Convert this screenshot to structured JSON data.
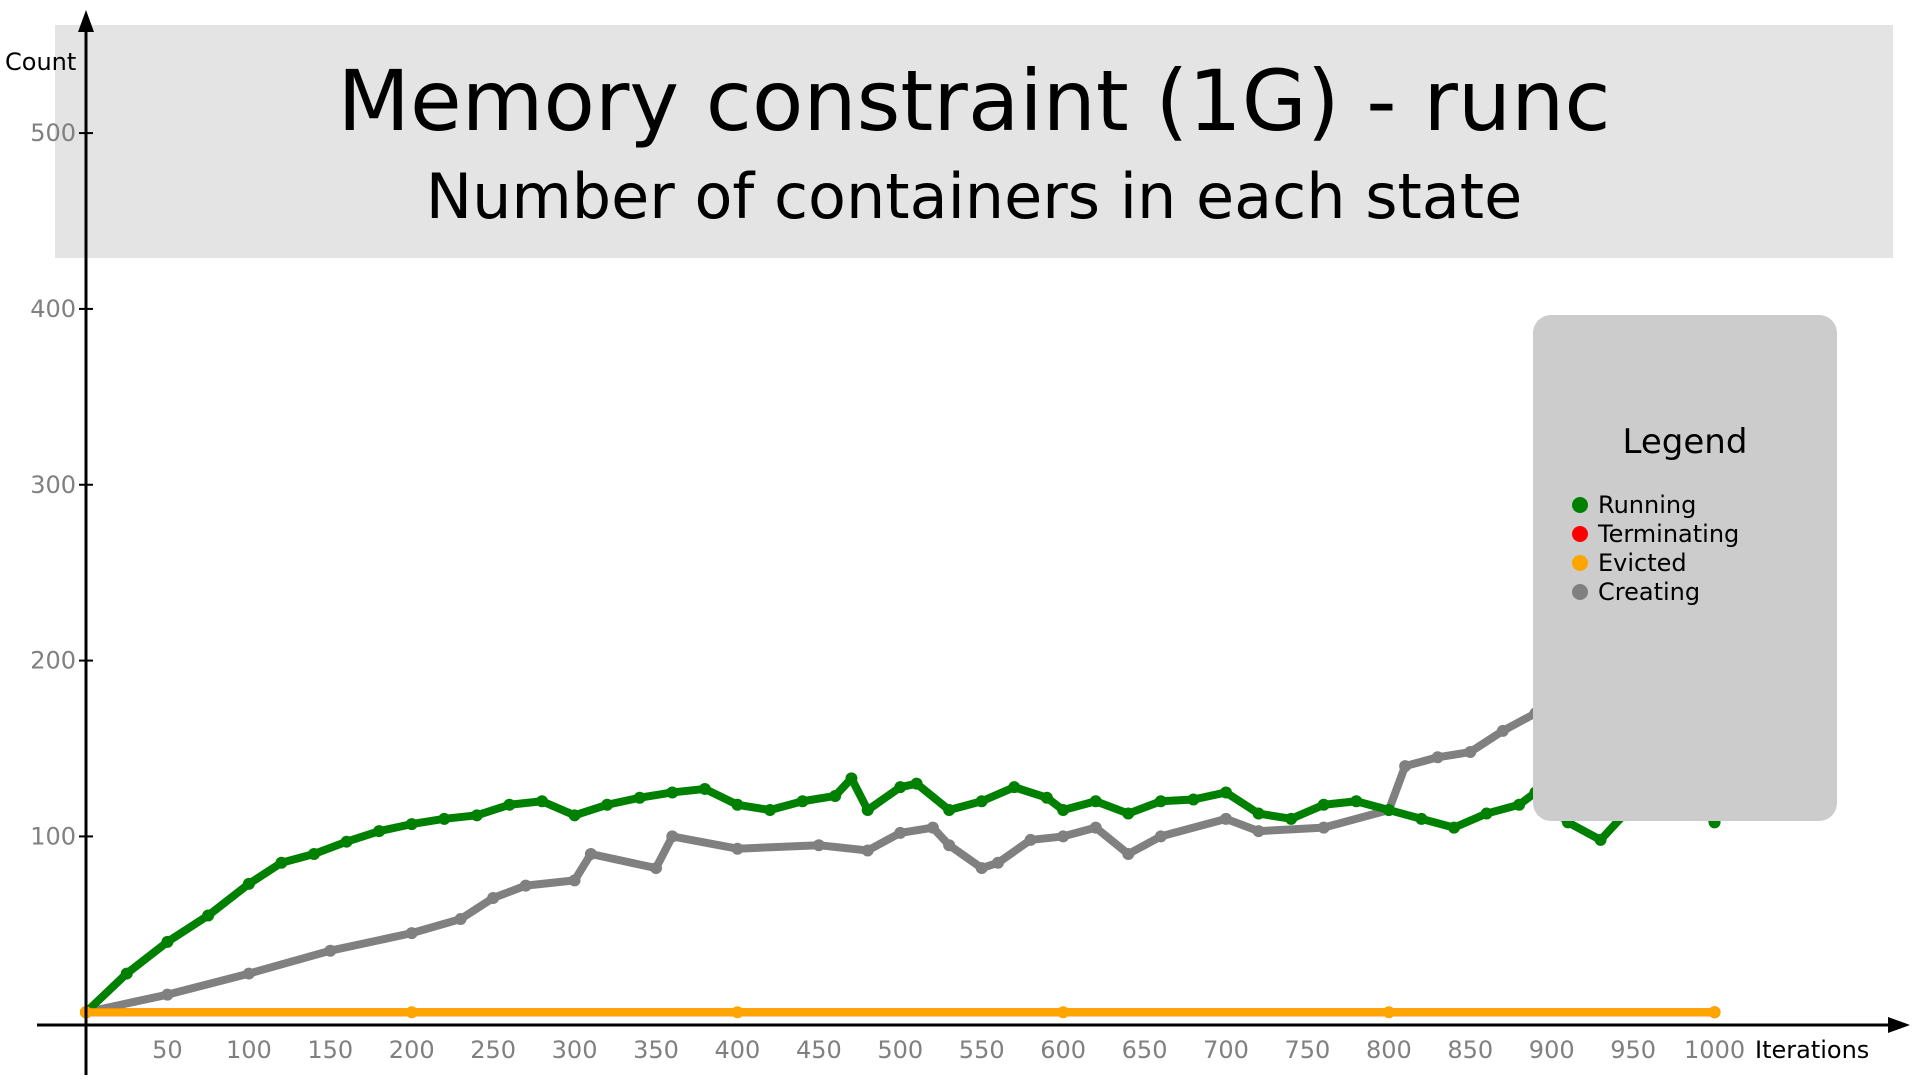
{
  "chart_data": {
    "type": "scatter",
    "title": "Memory constraint (1G) - runc",
    "subtitle": "Number of containers in each state",
    "xlabel": "Iterations",
    "ylabel": "Count",
    "xlim": [
      0,
      1120
    ],
    "ylim": [
      -30,
      570
    ],
    "x_ticks": [
      50,
      100,
      150,
      200,
      250,
      300,
      350,
      400,
      450,
      500,
      550,
      600,
      650,
      700,
      750,
      800,
      850,
      900,
      950,
      1000
    ],
    "y_ticks": [
      100,
      200,
      300,
      400,
      500
    ],
    "grid": false,
    "legend": {
      "title": "Legend",
      "placement": "top-right"
    },
    "series": [
      {
        "name": "Running",
        "color": "#008000",
        "points": [
          [
            0,
            0
          ],
          [
            25,
            22
          ],
          [
            50,
            40
          ],
          [
            75,
            55
          ],
          [
            100,
            73
          ],
          [
            120,
            85
          ],
          [
            140,
            90
          ],
          [
            160,
            97
          ],
          [
            180,
            103
          ],
          [
            200,
            107
          ],
          [
            220,
            110
          ],
          [
            240,
            112
          ],
          [
            260,
            118
          ],
          [
            280,
            120
          ],
          [
            300,
            112
          ],
          [
            320,
            118
          ],
          [
            340,
            122
          ],
          [
            360,
            125
          ],
          [
            380,
            127
          ],
          [
            400,
            118
          ],
          [
            420,
            115
          ],
          [
            440,
            120
          ],
          [
            460,
            123
          ],
          [
            470,
            133
          ],
          [
            480,
            115
          ],
          [
            500,
            128
          ],
          [
            510,
            130
          ],
          [
            530,
            115
          ],
          [
            550,
            120
          ],
          [
            570,
            128
          ],
          [
            590,
            122
          ],
          [
            600,
            115
          ],
          [
            620,
            120
          ],
          [
            640,
            113
          ],
          [
            660,
            120
          ],
          [
            680,
            121
          ],
          [
            700,
            125
          ],
          [
            720,
            113
          ],
          [
            740,
            110
          ],
          [
            760,
            118
          ],
          [
            780,
            120
          ],
          [
            800,
            115
          ],
          [
            820,
            110
          ],
          [
            840,
            105
          ],
          [
            860,
            113
          ],
          [
            880,
            118
          ],
          [
            890,
            125
          ],
          [
            910,
            108
          ],
          [
            930,
            98
          ],
          [
            950,
            118
          ],
          [
            970,
            127
          ],
          [
            990,
            118
          ],
          [
            1000,
            108
          ]
        ]
      },
      {
        "name": "Terminating",
        "color": "#ff0000",
        "points": [
          [
            0,
            0
          ],
          [
            1000,
            0
          ]
        ]
      },
      {
        "name": "Evicted",
        "color": "#ffa500",
        "points": [
          [
            0,
            0
          ],
          [
            200,
            0
          ],
          [
            400,
            0
          ],
          [
            600,
            0
          ],
          [
            800,
            0
          ],
          [
            1000,
            0
          ]
        ]
      },
      {
        "name": "Creating",
        "color": "#808080",
        "points": [
          [
            0,
            0
          ],
          [
            50,
            10
          ],
          [
            100,
            22
          ],
          [
            150,
            35
          ],
          [
            200,
            45
          ],
          [
            230,
            53
          ],
          [
            250,
            65
          ],
          [
            270,
            72
          ],
          [
            300,
            75
          ],
          [
            310,
            90
          ],
          [
            350,
            82
          ],
          [
            360,
            100
          ],
          [
            400,
            93
          ],
          [
            450,
            95
          ],
          [
            480,
            92
          ],
          [
            500,
            102
          ],
          [
            520,
            105
          ],
          [
            530,
            95
          ],
          [
            550,
            82
          ],
          [
            560,
            85
          ],
          [
            580,
            98
          ],
          [
            600,
            100
          ],
          [
            620,
            105
          ],
          [
            640,
            90
          ],
          [
            660,
            100
          ],
          [
            700,
            110
          ],
          [
            720,
            103
          ],
          [
            760,
            105
          ],
          [
            800,
            115
          ],
          [
            810,
            140
          ],
          [
            830,
            145
          ],
          [
            850,
            148
          ],
          [
            870,
            160
          ],
          [
            890,
            170
          ],
          [
            900,
            175
          ],
          [
            920,
            158
          ],
          [
            940,
            170
          ],
          [
            960,
            183
          ],
          [
            980,
            195
          ],
          [
            1000,
            235
          ]
        ]
      }
    ]
  }
}
